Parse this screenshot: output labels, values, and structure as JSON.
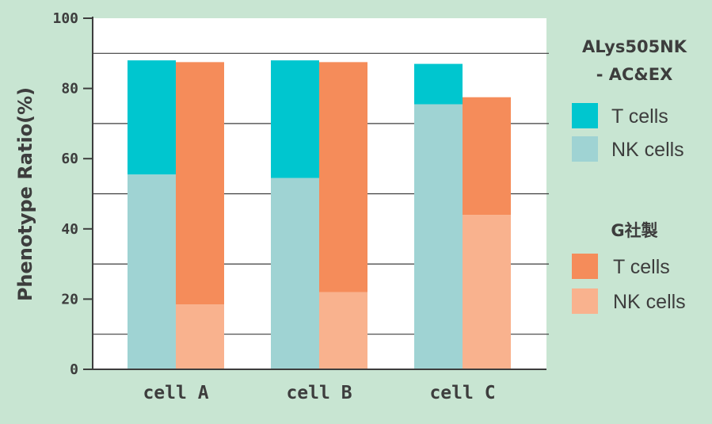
{
  "chart_data": {
    "type": "bar",
    "stacked": true,
    "title": "",
    "xlabel": "",
    "ylabel": "Phenotype Ratio(%)",
    "ylim": [
      0,
      100
    ],
    "yticks": [
      "0",
      "20",
      "40",
      "60",
      "80",
      "100"
    ],
    "grid": true,
    "legend_position": "right",
    "categories": [
      "cell A",
      "cell B",
      "cell C"
    ],
    "groups": [
      {
        "name": "ALys505NK\n- AC&EX",
        "title_lines": [
          "ALys505NK",
          "- AC&EX"
        ],
        "series": [
          {
            "name": "NK cells",
            "color": "#9fd3d3",
            "values": [
              55.5,
              54.5,
              75.5
            ]
          },
          {
            "name": "T cells",
            "color": "#00c6cf",
            "values": [
              32.5,
              33.5,
              11.5
            ]
          }
        ]
      },
      {
        "name": "G社製",
        "title_lines": [
          "G社製"
        ],
        "series": [
          {
            "name": "NK cells",
            "color": "#f9b28e",
            "values": [
              18.5,
              22,
              44
            ]
          },
          {
            "name": "T cells",
            "color": "#f58c5a",
            "values": [
              69,
              65.5,
              33.5
            ]
          }
        ]
      }
    ]
  }
}
